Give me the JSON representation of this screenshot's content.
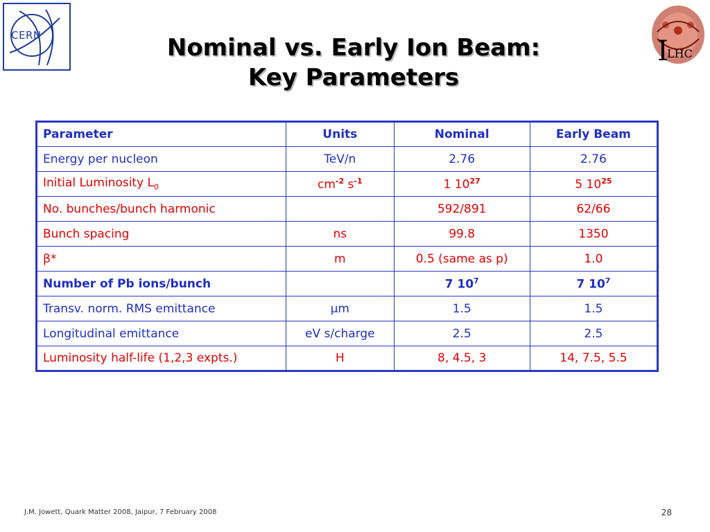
{
  "logos": {
    "cern": "CERN",
    "lhc_initial": "I",
    "lhc": "LHC"
  },
  "title": {
    "line1": "Nominal vs. Early Ion Beam:",
    "line2": "Key Parameters"
  },
  "table": {
    "headers": [
      "Parameter",
      "Units",
      "Nominal",
      "Early Beam"
    ],
    "rows": [
      {
        "param": "Energy per nucleon",
        "units": "TeV/n",
        "nominal": "2.76",
        "early": "2.76"
      },
      {
        "param": "Initial Luminosity L",
        "param_sub": "0",
        "units_a": "cm",
        "units_a_exp": "-2",
        "units_b": " s",
        "units_b_exp": "-1",
        "nominal_base": "1 10",
        "nominal_exp": "27",
        "early_base": "5 10",
        "early_exp": "25"
      },
      {
        "param": "No. bunches/bunch harmonic",
        "units": "",
        "nominal": "592/891",
        "early": "62/66"
      },
      {
        "param": "Bunch spacing",
        "units": "ns",
        "nominal": "99.8",
        "early": "1350"
      },
      {
        "param": "β*",
        "units": "m",
        "nominal": "0.5 (same as  p)",
        "early": "1.0"
      },
      {
        "param": "Number of Pb ions/bunch",
        "units": "",
        "nominal_base": "7 10",
        "nominal_exp": "7",
        "early_base": "7 10",
        "early_exp": "7"
      },
      {
        "param": "Transv. norm. RMS emittance",
        "units": "μm",
        "nominal": "1.5",
        "early": "1.5"
      },
      {
        "param": "Longitudinal emittance",
        "units": "eV s/charge",
        "nominal": "2.5",
        "early": "2.5"
      },
      {
        "param": "Luminosity half-life (1,2,3 expts.)",
        "units": "H",
        "nominal": "8, 4.5, 3",
        "early": "14, 7.5, 5.5"
      }
    ]
  },
  "footer": {
    "text": "J.M. Jowett, Quark Matter 2008, Jaipur, 7 February 2008",
    "page": "28"
  },
  "colors": {
    "blue_text": "#1f2fc4",
    "red_text": "#e00000",
    "table_border": "#2b36c8"
  }
}
